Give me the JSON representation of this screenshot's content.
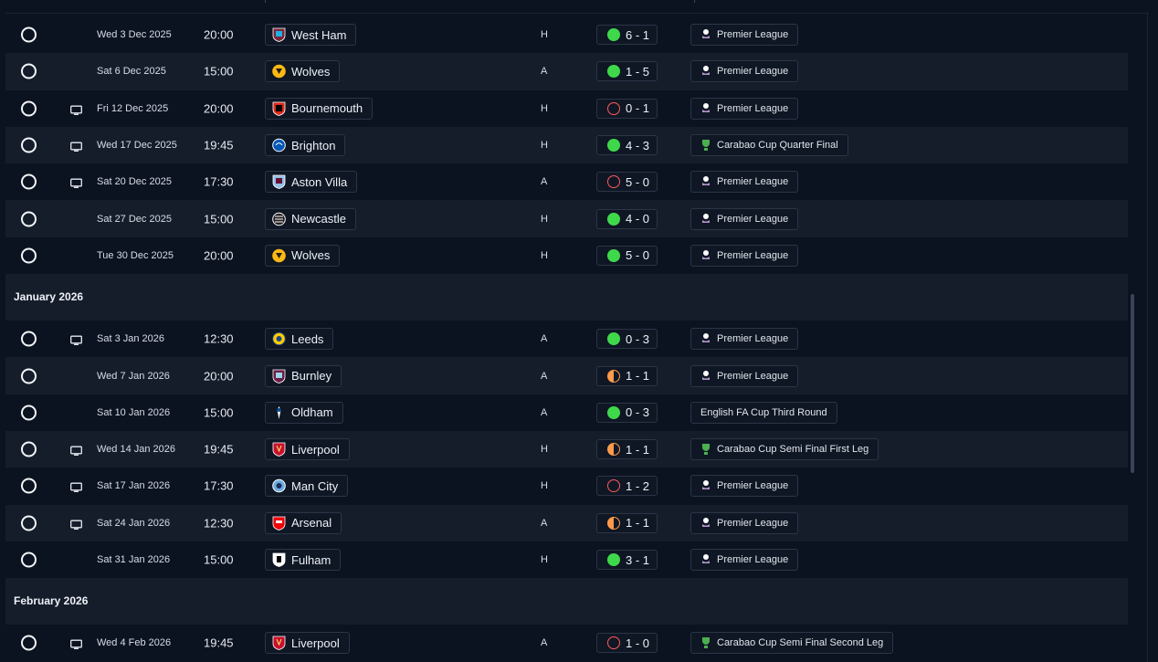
{
  "colors": {
    "win": "#3fd84a",
    "loss": "#ff5a5a",
    "draw": "#ff9a4a",
    "background": "#0b1220",
    "row_alt": "#151d2b"
  },
  "fixtures": [
    {
      "date": "Wed 3 Dec 2025",
      "time": "20:00",
      "team": "West Ham",
      "crest": "west-ham-crest-icon",
      "venue": "H",
      "score": "6 - 1",
      "outcome": "win",
      "competition": "Premier League",
      "comp_icon": "premier-league-icon",
      "tv": false
    },
    {
      "date": "Sat 6 Dec 2025",
      "time": "15:00",
      "team": "Wolves",
      "crest": "wolves-crest-icon",
      "venue": "A",
      "score": "1 - 5",
      "outcome": "win",
      "competition": "Premier League",
      "comp_icon": "premier-league-icon",
      "tv": false
    },
    {
      "date": "Fri 12 Dec 2025",
      "time": "20:00",
      "team": "Bournemouth",
      "crest": "bournemouth-crest-icon",
      "venue": "H",
      "score": "0 - 1",
      "outcome": "loss",
      "competition": "Premier League",
      "comp_icon": "premier-league-icon",
      "tv": true
    },
    {
      "date": "Wed 17 Dec 2025",
      "time": "19:45",
      "team": "Brighton",
      "crest": "brighton-crest-icon",
      "venue": "H",
      "score": "4 - 3",
      "outcome": "win",
      "competition": "Carabao Cup Quarter Final",
      "comp_icon": "carabao-cup-icon",
      "tv": true
    },
    {
      "date": "Sat 20 Dec 2025",
      "time": "17:30",
      "team": "Aston Villa",
      "crest": "aston-villa-crest-icon",
      "venue": "A",
      "score": "5 - 0",
      "outcome": "loss",
      "competition": "Premier League",
      "comp_icon": "premier-league-icon",
      "tv": true
    },
    {
      "date": "Sat 27 Dec 2025",
      "time": "15:00",
      "team": "Newcastle",
      "crest": "newcastle-crest-icon",
      "venue": "H",
      "score": "4 - 0",
      "outcome": "win",
      "competition": "Premier League",
      "comp_icon": "premier-league-icon",
      "tv": false
    },
    {
      "date": "Tue 30 Dec 2025",
      "time": "20:00",
      "team": "Wolves",
      "crest": "wolves-crest-icon",
      "venue": "H",
      "score": "5 - 0",
      "outcome": "win",
      "competition": "Premier League",
      "comp_icon": "premier-league-icon",
      "tv": false
    },
    {
      "month": "January 2026"
    },
    {
      "date": "Sat 3 Jan 2026",
      "time": "12:30",
      "team": "Leeds",
      "crest": "leeds-crest-icon",
      "venue": "A",
      "score": "0 - 3",
      "outcome": "win",
      "competition": "Premier League",
      "comp_icon": "premier-league-icon",
      "tv": true
    },
    {
      "date": "Wed 7 Jan 2026",
      "time": "20:00",
      "team": "Burnley",
      "crest": "burnley-crest-icon",
      "venue": "A",
      "score": "1 - 1",
      "outcome": "draw",
      "competition": "Premier League",
      "comp_icon": "premier-league-icon",
      "tv": false
    },
    {
      "date": "Sat 10 Jan 2026",
      "time": "15:00",
      "team": "Oldham",
      "crest": "oldham-crest-icon",
      "venue": "A",
      "score": "0 - 3",
      "outcome": "win",
      "competition": "English FA Cup Third Round",
      "comp_icon": "",
      "tv": false
    },
    {
      "date": "Wed 14 Jan 2026",
      "time": "19:45",
      "team": "Liverpool",
      "crest": "liverpool-crest-icon",
      "venue": "H",
      "score": "1 - 1",
      "outcome": "draw",
      "competition": "Carabao Cup Semi Final First Leg",
      "comp_icon": "carabao-cup-icon",
      "tv": true
    },
    {
      "date": "Sat 17 Jan 2026",
      "time": "17:30",
      "team": "Man City",
      "crest": "man-city-crest-icon",
      "venue": "H",
      "score": "1 - 2",
      "outcome": "loss",
      "competition": "Premier League",
      "comp_icon": "premier-league-icon",
      "tv": true
    },
    {
      "date": "Sat 24 Jan 2026",
      "time": "12:30",
      "team": "Arsenal",
      "crest": "arsenal-crest-icon",
      "venue": "A",
      "score": "1 - 1",
      "outcome": "draw",
      "competition": "Premier League",
      "comp_icon": "premier-league-icon",
      "tv": true
    },
    {
      "date": "Sat 31 Jan 2026",
      "time": "15:00",
      "team": "Fulham",
      "crest": "fulham-crest-icon",
      "venue": "H",
      "score": "3 - 1",
      "outcome": "win",
      "competition": "Premier League",
      "comp_icon": "premier-league-icon",
      "tv": false
    },
    {
      "month": "February 2026"
    },
    {
      "date": "Wed 4 Feb 2026",
      "time": "19:45",
      "team": "Liverpool",
      "crest": "liverpool-crest-icon",
      "venue": "A",
      "score": "1 - 0",
      "outcome": "loss",
      "competition": "Carabao Cup Semi Final Second Leg",
      "comp_icon": "carabao-cup-icon",
      "tv": true
    }
  ]
}
